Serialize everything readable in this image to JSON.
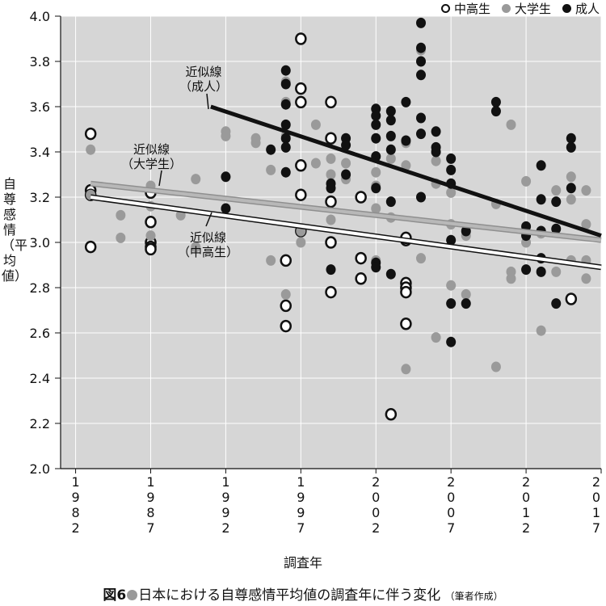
{
  "chart_data": {
    "type": "scatter",
    "ylim": [
      2.0,
      4.0
    ],
    "xlim": [
      1981,
      2017
    ],
    "yticks": [
      "2.0",
      "2.2",
      "2.4",
      "2.6",
      "2.8",
      "3.0",
      "3.2",
      "3.4",
      "3.6",
      "3.8",
      "4.0"
    ],
    "xticks": [
      {
        "value": 1982,
        "label": "1982"
      },
      {
        "value": 1987,
        "label": "1987"
      },
      {
        "value": 1992,
        "label": "1992"
      },
      {
        "value": 1997,
        "label": "1997"
      },
      {
        "value": 2002,
        "label": "2002"
      },
      {
        "value": 2007,
        "label": "2007"
      },
      {
        "value": 2012,
        "label": "2012"
      },
      {
        "value": 2017,
        "label": "2017"
      }
    ],
    "xlabel": "調査年",
    "ylabel": "自尊感情（平均値）",
    "legend": [
      {
        "name": "中高生",
        "style": "open"
      },
      {
        "name": "大学生",
        "style": "gray"
      },
      {
        "name": "成人",
        "style": "black"
      }
    ],
    "annotations": [
      {
        "text_line1": "近似線",
        "text_line2": "（成人）"
      },
      {
        "text_line1": "近似線",
        "text_line2": "（大学生）"
      },
      {
        "text_line1": "近似線",
        "text_line2": "（中高生）"
      }
    ],
    "trendlines": [
      {
        "name": "成人",
        "style": "black",
        "x": [
          1991,
          2017
        ],
        "y": [
          3.6,
          3.03
        ]
      },
      {
        "name": "大学生",
        "style": "gray",
        "x": [
          1983,
          2017
        ],
        "y": [
          3.26,
          3.01
        ]
      },
      {
        "name": "中高生",
        "style": "open",
        "x": [
          1983,
          2017
        ],
        "y": [
          3.2,
          2.89
        ]
      }
    ],
    "series": [
      {
        "name": "中高生",
        "style": "open",
        "x": [
          1983,
          1983,
          1983,
          1983,
          1987,
          1987,
          1987,
          1987,
          1987,
          1997,
          1997,
          1997,
          1997,
          1997,
          1997,
          1996,
          1996,
          1996,
          1999,
          1999,
          1999,
          1999,
          1999,
          2001,
          2001,
          2001,
          2004,
          2004,
          2004,
          2004,
          2004,
          2004,
          2003,
          2015
        ],
        "y": [
          3.48,
          3.23,
          3.21,
          2.98,
          3.22,
          3.09,
          3.0,
          2.98,
          2.97,
          3.9,
          3.68,
          3.62,
          3.34,
          3.21,
          3.05,
          2.72,
          2.63,
          2.92,
          3.62,
          3.46,
          3.18,
          3.0,
          2.78,
          3.2,
          2.93,
          2.84,
          3.01,
          2.82,
          2.8,
          2.78,
          2.64,
          3.02,
          2.24,
          2.75
        ]
      },
      {
        "name": "大学生",
        "style": "gray",
        "x": [
          1983,
          1983,
          1985,
          1985,
          1987,
          1987,
          1987,
          1989,
          1990,
          1990,
          1992,
          1992,
          1994,
          1994,
          1995,
          1995,
          1996,
          1996,
          1996,
          1996,
          1997,
          1997,
          1998,
          1998,
          1999,
          1999,
          1999,
          2000,
          2000,
          2002,
          2002,
          2002,
          2002,
          2003,
          2003,
          2004,
          2004,
          2004,
          2005,
          2005,
          2006,
          2006,
          2006,
          2007,
          2007,
          2007,
          2008,
          2008,
          2010,
          2010,
          2011,
          2011,
          2011,
          2012,
          2012,
          2013,
          2013,
          2014,
          2014,
          2015,
          2015,
          2015,
          2016,
          2016,
          2016,
          2016
        ],
        "y": [
          3.41,
          3.21,
          3.12,
          3.02,
          3.25,
          3.16,
          3.03,
          3.12,
          2.98,
          3.28,
          3.49,
          3.47,
          3.46,
          3.44,
          3.32,
          2.92,
          3.71,
          3.62,
          3.47,
          2.77,
          3.05,
          3.0,
          3.52,
          3.35,
          3.37,
          3.3,
          3.1,
          3.35,
          3.28,
          3.31,
          3.25,
          3.15,
          2.92,
          3.37,
          3.11,
          3.44,
          3.34,
          2.44,
          3.85,
          2.93,
          3.36,
          3.26,
          2.58,
          3.22,
          3.08,
          2.81,
          3.03,
          2.77,
          3.17,
          2.45,
          3.52,
          2.87,
          2.84,
          3.27,
          3.0,
          3.04,
          2.61,
          3.23,
          2.87,
          3.29,
          3.19,
          2.92,
          3.23,
          3.08,
          2.92,
          2.84
        ]
      },
      {
        "name": "成人",
        "style": "black",
        "x": [
          1992,
          1992,
          1995,
          1996,
          1996,
          1996,
          1996,
          1996,
          1996,
          1996,
          1999,
          1999,
          1999,
          2000,
          2000,
          2000,
          2002,
          2002,
          2002,
          2002,
          2002,
          2002,
          2002,
          2002,
          2003,
          2003,
          2003,
          2003,
          2003,
          2003,
          2004,
          2004,
          2005,
          2005,
          2005,
          2005,
          2005,
          2005,
          2005,
          2006,
          2006,
          2006,
          2007,
          2007,
          2007,
          2007,
          2007,
          2007,
          2008,
          2008,
          2010,
          2010,
          2012,
          2012,
          2012,
          2013,
          2013,
          2013,
          2013,
          2013,
          2014,
          2014,
          2014,
          2015,
          2015,
          2015
        ],
        "y": [
          3.29,
          3.15,
          3.41,
          3.76,
          3.7,
          3.61,
          3.52,
          3.46,
          3.42,
          3.31,
          3.26,
          3.24,
          2.88,
          3.46,
          3.43,
          3.3,
          3.59,
          3.56,
          3.52,
          3.46,
          3.38,
          3.24,
          2.91,
          2.89,
          3.58,
          3.54,
          3.47,
          3.18,
          2.86,
          3.41,
          3.62,
          3.45,
          3.97,
          3.86,
          3.8,
          3.74,
          3.55,
          3.48,
          3.2,
          3.49,
          3.42,
          3.4,
          3.37,
          3.32,
          3.26,
          3.01,
          2.73,
          2.56,
          3.05,
          2.73,
          3.62,
          3.58,
          3.07,
          3.03,
          2.88,
          3.34,
          3.19,
          3.05,
          2.93,
          2.87,
          3.18,
          3.06,
          2.73,
          3.46,
          3.42,
          3.24
        ]
      }
    ]
  },
  "caption": {
    "fig_label": "図6",
    "title": "日本における自尊感情平均値の調査年に伴う変化",
    "note": "（筆者作成）"
  }
}
